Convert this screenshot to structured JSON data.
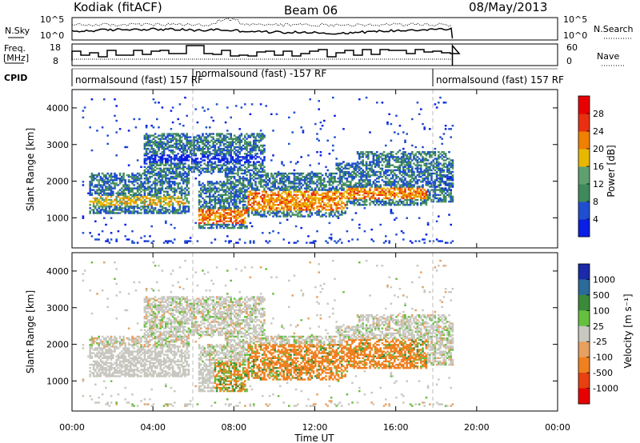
{
  "header": {
    "station": "Kodiak (fitACF)",
    "beam": "Beam 06",
    "date": "08/May/2013"
  },
  "noise_panel": {
    "left_label": "N.Sky",
    "right_label": "N.Search",
    "left_ticks": [
      "10^5",
      "10^0"
    ],
    "right_ticks": [
      "10^5",
      "10^0"
    ]
  },
  "freq_panel": {
    "left_label_1": "Freq.",
    "left_label_2": "[MHz]",
    "right_label": "Nave",
    "left_ticks": [
      "18",
      "8"
    ],
    "right_ticks": [
      "60",
      "0"
    ]
  },
  "cpid": {
    "label": "CPID",
    "segments": [
      {
        "text": "normalsound (fast) 157 RF",
        "start_hour": 0.0
      },
      {
        "text": "normalsound (fast) -157 RF",
        "start_hour": 6.0
      },
      {
        "text": "normalsound (fast) 157 RF",
        "start_hour": 18.0
      }
    ]
  },
  "power_panel": {
    "ylabel": "Slant Range [km]",
    "yticks": [
      "1000",
      "2000",
      "3000",
      "4000"
    ],
    "colorbar_label": "Power [dB]",
    "colorbar_ticks": [
      "4",
      "8",
      "12",
      "16",
      "20",
      "24",
      "28"
    ],
    "colors": [
      "#0a1ee6",
      "#1f4fd0",
      "#3f8a5a",
      "#5fa070",
      "#e8b800",
      "#f08000",
      "#e83010",
      "#e80000"
    ]
  },
  "velocity_panel": {
    "ylabel": "Slant Range [km]",
    "yticks": [
      "1000",
      "2000",
      "3000",
      "4000"
    ],
    "colorbar_label": "Velocity [m s⁻¹]",
    "colorbar_ticks": [
      "1000",
      "500",
      "100",
      "25",
      "-25",
      "-100",
      "-500",
      "-1000"
    ],
    "colors": [
      "#1a2aa8",
      "#2c6a9a",
      "#3a8a3a",
      "#66c040",
      "#c8c8c0",
      "#e8a060",
      "#f08020",
      "#e84010",
      "#e80000"
    ]
  },
  "xaxis": {
    "label": "Time UT",
    "ticks": [
      "00:00",
      "04:00",
      "08:00",
      "12:00",
      "16:00",
      "20:00",
      "00:00"
    ]
  },
  "chart_data": {
    "type": "heatmap",
    "title": "Kodiak (fitACF) Beam 06 08/May/2013",
    "xlabel": "Time UT",
    "ylabel": "Slant Range [km]",
    "xlim_hours": [
      0,
      24
    ],
    "ylim_km": [
      180,
      4500
    ],
    "data_end_hour": 18.8,
    "cpid_boundaries_hours": [
      6.0,
      18.0
    ],
    "power_scale_db": [
      0,
      30
    ],
    "velocity_scale_ms": [
      -1000,
      1000
    ]
  }
}
